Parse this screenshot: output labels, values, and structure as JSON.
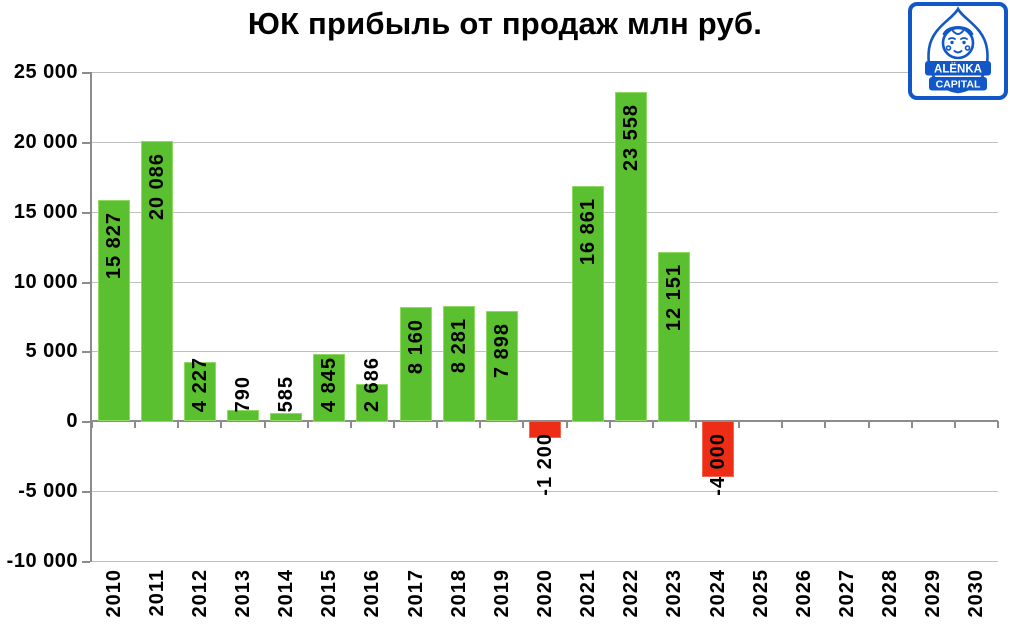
{
  "title": "ЮК прибыль от продаж млн руб.",
  "logo": {
    "line1": "ALËNKA",
    "line2": "CAPITAL"
  },
  "chart_data": {
    "type": "bar",
    "title": "ЮК прибыль от продаж млн руб.",
    "categories": [
      "2010",
      "2011",
      "2012",
      "2013",
      "2014",
      "2015",
      "2016",
      "2017",
      "2018",
      "2019",
      "2020",
      "2021",
      "2022",
      "2023",
      "2024",
      "2025",
      "2026",
      "2027",
      "2028",
      "2029",
      "2030"
    ],
    "values": [
      15827,
      20086,
      4227,
      790,
      585,
      4845,
      2686,
      8160,
      8281,
      7898,
      -1200,
      16861,
      23558,
      12151,
      -4000,
      null,
      null,
      null,
      null,
      null,
      null
    ],
    "value_labels": [
      "15 827",
      "20 086",
      "4 227",
      "790",
      "585",
      "4 845",
      "2 686",
      "8 160",
      "8 281",
      "7 898",
      "-1 200",
      "16 861",
      "23 558",
      "12 151",
      "-4 000",
      "",
      "",
      "",
      "",
      "",
      ""
    ],
    "xlabel": "",
    "ylabel": "",
    "ylim": [
      -10000,
      25000
    ],
    "ytick_step": 5000,
    "yticks": [
      {
        "value": 25000,
        "label": "25 000"
      },
      {
        "value": 20000,
        "label": "20 000"
      },
      {
        "value": 15000,
        "label": "15 000"
      },
      {
        "value": 10000,
        "label": "10 000"
      },
      {
        "value": 5000,
        "label": "5 000"
      },
      {
        "value": 0,
        "label": "0"
      },
      {
        "value": -5000,
        "label": "-5 000"
      },
      {
        "value": -10000,
        "label": "-10 000"
      }
    ],
    "grid": true,
    "legend": false,
    "x_tick_rotation": 90,
    "bar_label_rotation": 90,
    "colors": {
      "positive": "#5bc02f",
      "negative": "#ee2d16",
      "gridline": "#bfbfbf",
      "axis": "#8c8c8c",
      "text": "#000000",
      "logo_blue": "#1257c8"
    }
  }
}
